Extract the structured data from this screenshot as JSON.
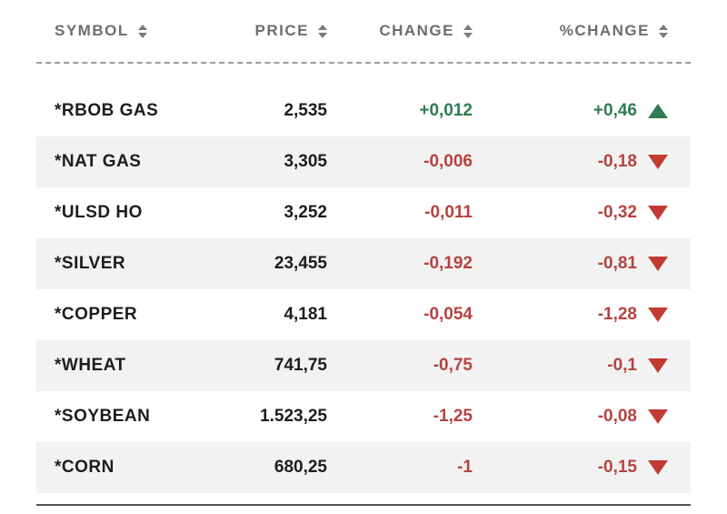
{
  "chart_data": {
    "type": "table",
    "columns": [
      "SYMBOL",
      "PRICE",
      "CHANGE",
      "%CHANGE"
    ],
    "rows": [
      {
        "symbol": "*RBOB GAS",
        "price": "2,535",
        "change": "+0,012",
        "pct_change": "+0,46",
        "trend": "up"
      },
      {
        "symbol": "*NAT GAS",
        "price": "3,305",
        "change": "-0,006",
        "pct_change": "-0,18",
        "trend": "down"
      },
      {
        "symbol": "*ULSD HO",
        "price": "3,252",
        "change": "-0,011",
        "pct_change": "-0,32",
        "trend": "down"
      },
      {
        "symbol": "*SILVER",
        "price": "23,455",
        "change": "-0,192",
        "pct_change": "-0,81",
        "trend": "down"
      },
      {
        "symbol": "*COPPER",
        "price": "4,181",
        "change": "-0,054",
        "pct_change": "-1,28",
        "trend": "down"
      },
      {
        "symbol": "*WHEAT",
        "price": "741,75",
        "change": "-0,75",
        "pct_change": "-0,1",
        "trend": "down"
      },
      {
        "symbol": "*SOYBEAN",
        "price": "1.523,25",
        "change": "-1,25",
        "pct_change": "-0,08",
        "trend": "down"
      },
      {
        "symbol": "*CORN",
        "price": "680,25",
        "change": "-1",
        "pct_change": "-0,15",
        "trend": "down"
      }
    ]
  },
  "colors": {
    "positive": "#2e7d52",
    "negative": "#b5433f",
    "header_text": "#6e6e6e",
    "row_alt_bg": "#f2f2f2"
  }
}
